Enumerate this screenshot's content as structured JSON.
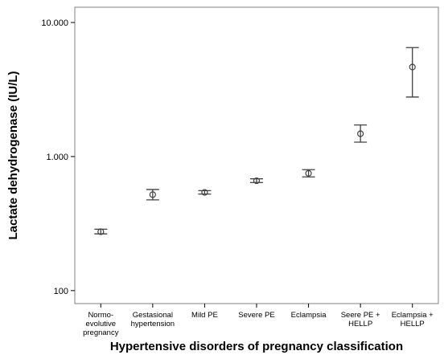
{
  "chart_data": {
    "type": "errorbar",
    "title": "",
    "xlabel": "Hypertensive disorders of pregnancy classification",
    "ylabel": "Lactate dehydrogenase (IU/L)",
    "yscale": "log",
    "ylim": [
      80,
      13000
    ],
    "yticks": [
      100,
      1000,
      10000
    ],
    "ytick_labels": [
      "100",
      "1.000",
      "10.000"
    ],
    "grid": false,
    "categories": [
      [
        "Normo-",
        "evolutive",
        "pregnancy"
      ],
      [
        "Gestasional",
        "hypertension"
      ],
      [
        "Mild PE"
      ],
      [
        "Severe PE"
      ],
      [
        "Eclampsia"
      ],
      [
        "Seere PE +",
        "HELLP"
      ],
      [
        "Eclampsia +",
        "HELLP"
      ]
    ],
    "series": [
      {
        "mean": [
          275,
          520,
          540,
          660,
          750,
          1480,
          4650
        ],
        "lower": [
          265,
          475,
          525,
          640,
          705,
          1280,
          2780
        ],
        "upper": [
          287,
          568,
          557,
          682,
          798,
          1720,
          6500
        ]
      }
    ]
  }
}
